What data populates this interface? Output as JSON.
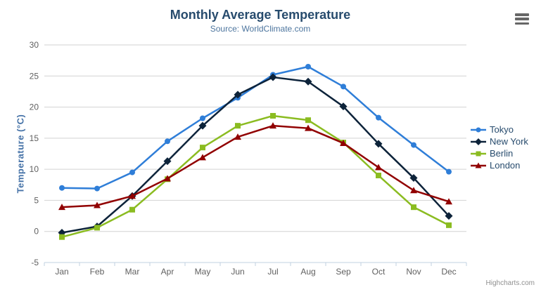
{
  "chart_data": {
    "type": "line",
    "title": "Monthly Average Temperature",
    "subtitle": "Source: WorldClimate.com",
    "xlabel": "",
    "ylabel": "Temperature (°C)",
    "ylim": [
      -5,
      30
    ],
    "ytick_step": 5,
    "grid": true,
    "legend_position": "right",
    "categories": [
      "Jan",
      "Feb",
      "Mar",
      "Apr",
      "May",
      "Jun",
      "Jul",
      "Aug",
      "Sep",
      "Oct",
      "Nov",
      "Dec"
    ],
    "series": [
      {
        "name": "Tokyo",
        "color": "#2f7ed8",
        "marker": "circle",
        "values": [
          7.0,
          6.9,
          9.5,
          14.5,
          18.2,
          21.5,
          25.2,
          26.5,
          23.3,
          18.3,
          13.9,
          9.6
        ]
      },
      {
        "name": "New York",
        "color": "#0d233a",
        "marker": "diamond",
        "values": [
          -0.2,
          0.8,
          5.7,
          11.3,
          17.0,
          22.0,
          24.8,
          24.1,
          20.1,
          14.1,
          8.6,
          2.5
        ]
      },
      {
        "name": "Berlin",
        "color": "#8bbc21",
        "marker": "square",
        "values": [
          -0.9,
          0.6,
          3.5,
          8.4,
          13.5,
          17.0,
          18.6,
          17.9,
          14.3,
          9.0,
          3.9,
          1.0
        ]
      },
      {
        "name": "London",
        "color": "#910000",
        "marker": "triangle",
        "values": [
          3.9,
          4.2,
          5.7,
          8.5,
          11.9,
          15.2,
          17.0,
          16.6,
          14.2,
          10.3,
          6.6,
          4.8
        ]
      }
    ]
  },
  "theme": {
    "title_color": "#274b6d",
    "subtitle_color": "#4d759e",
    "axis_title_color": "#4572a7",
    "tick_label_color": "#606060",
    "grid_color": "#d2d2d2",
    "axis_line_color": "#c0d0e0",
    "legend_text_color": "#274b6d",
    "credits_color": "#909090",
    "menu_icon_color": "#666666",
    "background": "#ffffff"
  },
  "credits": {
    "text": "Highcharts.com"
  }
}
